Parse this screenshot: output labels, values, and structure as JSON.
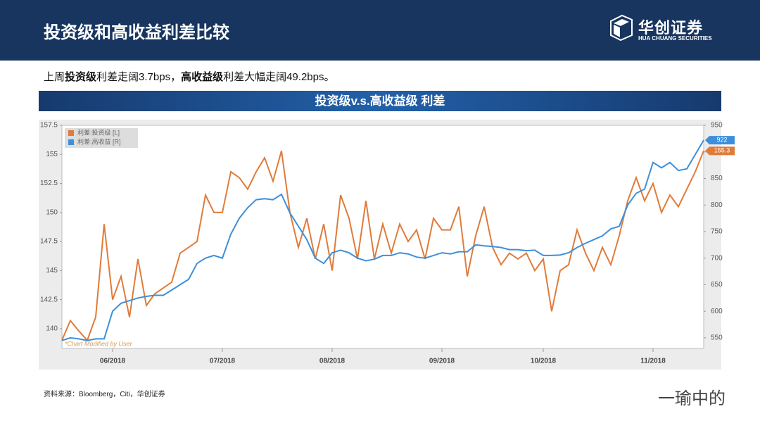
{
  "header": {
    "title": "投资级和高收益利差比较",
    "logo": "华创证券",
    "logo_sub": "HUA CHUANG SECURITIES"
  },
  "summary": [
    "上周",
    "投资级",
    "利差走阔3.7bps，",
    "高收益级",
    "利差大幅走阔49.2bps。"
  ],
  "source": "资料来源：Bloomberg，Citi，华创证券",
  "watermark": "一瑜中的",
  "chart_data": {
    "type": "line",
    "title": "投资级v.s.高收益级 利差",
    "note": "*Chart Modified by User",
    "legend": "upper left",
    "categories": [
      null,
      null,
      null,
      null,
      null,
      null,
      "06/2018",
      null,
      null,
      null,
      null,
      null,
      null,
      null,
      null,
      null,
      null,
      null,
      null,
      "07/2018",
      null,
      null,
      null,
      null,
      null,
      null,
      null,
      null,
      null,
      null,
      null,
      null,
      "08/2018",
      null,
      null,
      null,
      null,
      null,
      null,
      null,
      null,
      null,
      null,
      null,
      null,
      "09/2018",
      null,
      null,
      null,
      null,
      null,
      null,
      null,
      null,
      null,
      null,
      null,
      "10/2018",
      null,
      null,
      null,
      null,
      null,
      null,
      null,
      null,
      null,
      null,
      null,
      null,
      "11/2018",
      null,
      null,
      null,
      null,
      null,
      null
    ],
    "series": [
      {
        "name": "利差:投资级 [L]",
        "color": "#e07b39",
        "values": [
          139.0,
          140.7,
          139.8,
          139.0,
          141.0,
          149.0,
          142.5,
          144.5,
          141.0,
          146.0,
          142.0,
          143.0,
          143.5,
          144.0,
          146.5,
          147.0,
          147.5,
          151.5,
          150.0,
          150.0,
          153.5,
          153.0,
          152.0,
          153.5,
          154.7,
          152.7,
          155.3,
          150.0,
          147.0,
          149.5,
          146.0,
          149.0,
          145.0,
          151.5,
          149.5,
          146.0,
          151.0,
          146.0,
          149.0,
          146.5,
          149.0,
          147.5,
          148.5,
          146.0,
          149.5,
          148.5,
          148.5,
          150.5,
          144.5,
          148.0,
          150.5,
          147.0,
          145.5,
          146.5,
          146.0,
          146.5,
          145.0,
          146.0,
          141.5,
          145.0,
          145.5,
          148.5,
          146.5,
          145.0,
          147.0,
          145.5,
          148.0,
          151.0,
          153.0,
          151.0,
          152.5,
          150.0,
          151.5,
          150.5,
          152.0,
          153.5,
          155.3
        ]
      },
      {
        "name": "利差:高收益 [R]",
        "color": "#3d8fdb",
        "axis": "y2",
        "values": [
          545,
          550,
          548,
          545,
          548,
          548,
          600,
          615,
          620,
          625,
          628,
          630,
          630,
          640,
          650,
          660,
          690,
          700,
          705,
          700,
          745,
          775,
          795,
          810,
          812,
          810,
          820,
          785,
          760,
          735,
          700,
          690,
          710,
          715,
          710,
          700,
          695,
          698,
          705,
          705,
          710,
          708,
          702,
          700,
          705,
          710,
          708,
          712,
          712,
          725,
          723,
          722,
          720,
          716,
          716,
          714,
          715,
          705,
          705,
          706,
          710,
          720,
          728,
          735,
          742,
          755,
          760,
          800,
          822,
          830,
          880,
          870,
          880,
          865,
          868,
          895,
          922
        ]
      }
    ],
    "ylim": [
      138.3,
      157.5
    ],
    "yticks": [
      140,
      142.5,
      145,
      147.5,
      150,
      152.5,
      155,
      157.5
    ],
    "y2lim": [
      530,
      950
    ],
    "y2ticks": [
      550,
      600,
      650,
      700,
      750,
      800,
      850,
      900,
      950
    ]
  }
}
